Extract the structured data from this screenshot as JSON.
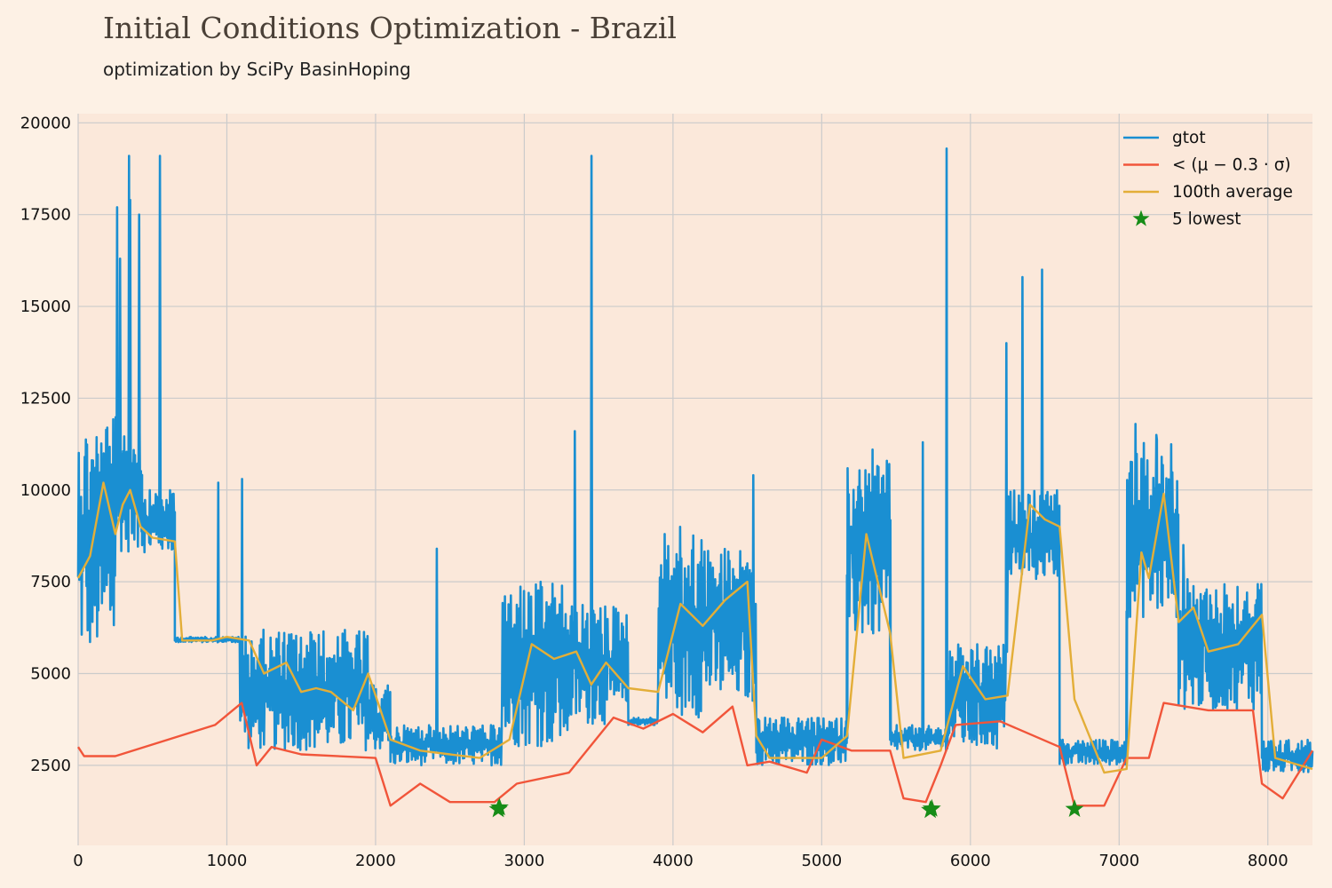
{
  "title": "Initial Conditions Optimization - Brazil",
  "subtitle": "optimization by SciPy BasinHoping",
  "colors": {
    "background": "#fdf1e5",
    "plot_background": "#fbe8da",
    "grid": "#cbcbcb",
    "gtot": "#1a8fd2",
    "below": "#f1553a",
    "average": "#e3ae38",
    "lowest": "#178c17"
  },
  "chart_data": {
    "type": "line",
    "title": "Initial Conditions Optimization - Brazil",
    "subtitle": "optimization by SciPy BasinHoping",
    "xlabel": "",
    "ylabel": "",
    "xlim": [
      0,
      8300
    ],
    "ylim": [
      320,
      20250
    ],
    "x_ticks": [
      0,
      1000,
      2000,
      3000,
      4000,
      5000,
      6000,
      7000,
      8000
    ],
    "y_ticks": [
      2500,
      5000,
      7500,
      10000,
      12500,
      15000,
      17500,
      20000
    ],
    "grid": true,
    "legend_position": "top-right",
    "legend": [
      "gtot",
      "< (μ − 0.3 · σ)",
      "100th average",
      "5 lowest"
    ],
    "series": [
      {
        "name": "gtot",
        "kind": "line",
        "segments": [
          {
            "x0": 0,
            "x1": 250,
            "min": 5500,
            "max": 12000
          },
          {
            "x0": 250,
            "x1": 430,
            "min": 8300,
            "max": 12000
          },
          {
            "x0": 430,
            "x1": 650,
            "min": 8300,
            "max": 10000
          },
          {
            "x0": 650,
            "x1": 1090,
            "min": 5850,
            "max": 6000
          },
          {
            "x0": 1090,
            "x1": 1350,
            "min": 2900,
            "max": 6200
          },
          {
            "x0": 1350,
            "x1": 1950,
            "min": 2900,
            "max": 6200
          },
          {
            "x0": 1950,
            "x1": 2100,
            "min": 2900,
            "max": 4700
          },
          {
            "x0": 2100,
            "x1": 2850,
            "min": 2500,
            "max": 3600
          },
          {
            "x0": 2850,
            "x1": 3300,
            "min": 3000,
            "max": 7500
          },
          {
            "x0": 3300,
            "x1": 3700,
            "min": 3600,
            "max": 6900
          },
          {
            "x0": 3700,
            "x1": 3900,
            "min": 3600,
            "max": 3800
          },
          {
            "x0": 3900,
            "x1": 4200,
            "min": 3800,
            "max": 9000
          },
          {
            "x0": 4200,
            "x1": 4560,
            "min": 4200,
            "max": 8500
          },
          {
            "x0": 4560,
            "x1": 5170,
            "min": 2500,
            "max": 3800
          },
          {
            "x0": 5170,
            "x1": 5460,
            "min": 5900,
            "max": 10800
          },
          {
            "x0": 5460,
            "x1": 5850,
            "min": 2900,
            "max": 3600
          },
          {
            "x0": 5850,
            "x1": 6250,
            "min": 2900,
            "max": 5800
          },
          {
            "x0": 6250,
            "x1": 6600,
            "min": 7500,
            "max": 10000
          },
          {
            "x0": 6600,
            "x1": 7050,
            "min": 2500,
            "max": 3200
          },
          {
            "x0": 7050,
            "x1": 7400,
            "min": 6500,
            "max": 11500
          },
          {
            "x0": 7400,
            "x1": 7960,
            "min": 4000,
            "max": 7600
          },
          {
            "x0": 7960,
            "x1": 8300,
            "min": 2300,
            "max": 3200
          }
        ],
        "spikes": [
          [
            260,
            17700
          ],
          [
            280,
            16300
          ],
          [
            340,
            19100
          ],
          [
            350,
            17900
          ],
          [
            410,
            17500
          ],
          [
            550,
            19100
          ],
          [
            940,
            10200
          ],
          [
            1100,
            10300
          ],
          [
            2410,
            8400
          ],
          [
            3340,
            11600
          ],
          [
            3450,
            19100
          ],
          [
            4540,
            10400
          ],
          [
            5340,
            11100
          ],
          [
            5680,
            11300
          ],
          [
            5840,
            19300
          ],
          [
            6240,
            14000
          ],
          [
            6350,
            15800
          ],
          [
            6480,
            16000
          ],
          [
            7110,
            11800
          ],
          [
            7250,
            11500
          ],
          [
            7430,
            8500
          ]
        ]
      },
      {
        "name": "< (μ − 0.3 · σ)",
        "kind": "line",
        "points": [
          [
            0,
            3000
          ],
          [
            40,
            2750
          ],
          [
            250,
            2750
          ],
          [
            920,
            3600
          ],
          [
            1100,
            4200
          ],
          [
            1200,
            2500
          ],
          [
            1300,
            3000
          ],
          [
            1500,
            2800
          ],
          [
            2000,
            2700
          ],
          [
            2100,
            1400
          ],
          [
            2300,
            2000
          ],
          [
            2500,
            1500
          ],
          [
            2800,
            1500
          ],
          [
            2950,
            2000
          ],
          [
            3300,
            2300
          ],
          [
            3600,
            3800
          ],
          [
            3800,
            3500
          ],
          [
            4000,
            3900
          ],
          [
            4200,
            3400
          ],
          [
            4400,
            4100
          ],
          [
            4500,
            2500
          ],
          [
            4650,
            2600
          ],
          [
            4900,
            2300
          ],
          [
            5000,
            3200
          ],
          [
            5200,
            2900
          ],
          [
            5460,
            2900
          ],
          [
            5550,
            1600
          ],
          [
            5700,
            1500
          ],
          [
            5800,
            2500
          ],
          [
            5900,
            3600
          ],
          [
            6200,
            3700
          ],
          [
            6600,
            3000
          ],
          [
            6700,
            1400
          ],
          [
            6900,
            1400
          ],
          [
            7050,
            2700
          ],
          [
            7200,
            2700
          ],
          [
            7300,
            4200
          ],
          [
            7600,
            4000
          ],
          [
            7900,
            4000
          ],
          [
            7960,
            2000
          ],
          [
            8100,
            1600
          ],
          [
            8300,
            2900
          ]
        ]
      },
      {
        "name": "100th average",
        "kind": "line",
        "points": [
          [
            0,
            7600
          ],
          [
            80,
            8200
          ],
          [
            170,
            10200
          ],
          [
            250,
            8800
          ],
          [
            300,
            9600
          ],
          [
            350,
            10000
          ],
          [
            420,
            9000
          ],
          [
            500,
            8700
          ],
          [
            650,
            8600
          ],
          [
            700,
            5900
          ],
          [
            900,
            5900
          ],
          [
            1000,
            6000
          ],
          [
            1150,
            5900
          ],
          [
            1250,
            5000
          ],
          [
            1400,
            5300
          ],
          [
            1500,
            4500
          ],
          [
            1600,
            4600
          ],
          [
            1700,
            4500
          ],
          [
            1850,
            4000
          ],
          [
            1950,
            5000
          ],
          [
            2100,
            3200
          ],
          [
            2300,
            2900
          ],
          [
            2500,
            2800
          ],
          [
            2700,
            2700
          ],
          [
            2900,
            3200
          ],
          [
            3050,
            5800
          ],
          [
            3200,
            5400
          ],
          [
            3350,
            5600
          ],
          [
            3450,
            4700
          ],
          [
            3550,
            5300
          ],
          [
            3700,
            4600
          ],
          [
            3900,
            4500
          ],
          [
            4050,
            6900
          ],
          [
            4200,
            6300
          ],
          [
            4350,
            7000
          ],
          [
            4500,
            7500
          ],
          [
            4560,
            3300
          ],
          [
            4650,
            2700
          ],
          [
            5000,
            2700
          ],
          [
            5170,
            3300
          ],
          [
            5300,
            8800
          ],
          [
            5460,
            6100
          ],
          [
            5550,
            2700
          ],
          [
            5800,
            2900
          ],
          [
            5950,
            5200
          ],
          [
            6100,
            4300
          ],
          [
            6250,
            4400
          ],
          [
            6400,
            9600
          ],
          [
            6500,
            9200
          ],
          [
            6600,
            9000
          ],
          [
            6700,
            4300
          ],
          [
            6900,
            2300
          ],
          [
            7050,
            2400
          ],
          [
            7150,
            8300
          ],
          [
            7200,
            7600
          ],
          [
            7300,
            9900
          ],
          [
            7400,
            6400
          ],
          [
            7500,
            6800
          ],
          [
            7600,
            5600
          ],
          [
            7800,
            5800
          ],
          [
            7960,
            6600
          ],
          [
            8050,
            2700
          ],
          [
            8300,
            2400
          ]
        ]
      },
      {
        "name": "5 lowest",
        "kind": "scatter",
        "points": [
          [
            2825,
            1300
          ],
          [
            2833,
            1350
          ],
          [
            5730,
            1280
          ],
          [
            5740,
            1320
          ],
          [
            6700,
            1310
          ]
        ]
      }
    ]
  }
}
